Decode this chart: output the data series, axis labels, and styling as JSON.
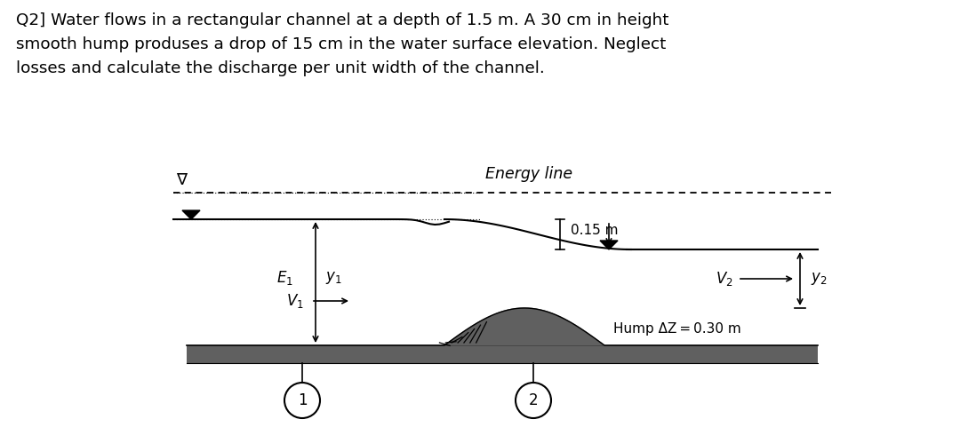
{
  "title_text": "Q2] Water flows in a rectangular channel at a depth of 1.5 m. A 30 cm in height\nsmooth hump produses a drop of 15 cm in the water surface elevation. Neglect\nlosses and calculate the discharge per unit width of the channel.",
  "energy_line_label": "Energy line",
  "label_015m": "0.15 m",
  "label_hump": "Hump ΔZ = 0.30 m",
  "label_E1": "$E_1$",
  "label_y1": "$y_1$",
  "label_V1": "$V_1$",
  "label_V2": "$V_2$",
  "label_y2": "$y_2$",
  "circle1": "1",
  "circle2": "2",
  "bg_color": "#ffffff",
  "text_color": "#000000",
  "channel_floor_color": "#606060",
  "dotted_line_color": "#333333",
  "fig_width": 10.8,
  "fig_height": 4.99,
  "dpi": 100
}
